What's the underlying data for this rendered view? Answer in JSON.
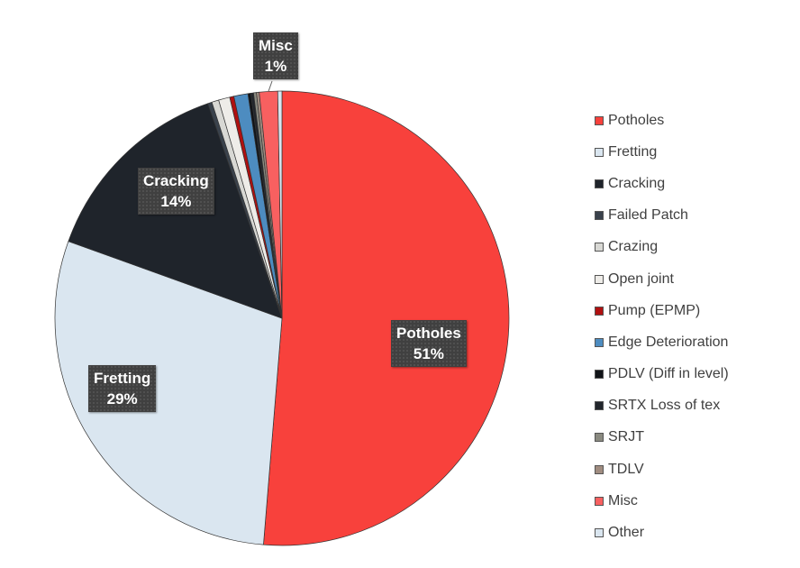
{
  "chart_data": {
    "type": "pie",
    "title": "",
    "start_angle_deg": 0,
    "direction": "clockwise",
    "legend_position": "right",
    "slices": [
      {
        "label": "Potholes",
        "value": 51.3,
        "color": "#F8413C",
        "data_label": "Potholes\n51%"
      },
      {
        "label": "Fretting",
        "value": 29.2,
        "color": "#DAE6F0",
        "data_label": "Fretting\n29%"
      },
      {
        "label": "Cracking",
        "value": 14.2,
        "color": "#1F242B",
        "data_label": "Cracking\n14%"
      },
      {
        "label": "Failed Patch",
        "value": 0.3,
        "color": "#3A424C"
      },
      {
        "label": "Crazing",
        "value": 0.5,
        "color": "#D8D8D4"
      },
      {
        "label": "Open joint",
        "value": 0.8,
        "color": "#EEECE8"
      },
      {
        "label": "Pump (EPMP)",
        "value": 0.3,
        "color": "#B01010"
      },
      {
        "label": "Edge Deterioration",
        "value": 1.0,
        "color": "#4D8CC0"
      },
      {
        "label": "PDLV (Diff in level)",
        "value": 0.2,
        "color": "#111418"
      },
      {
        "label": "SRTX Loss of tex",
        "value": 0.2,
        "color": "#22262C"
      },
      {
        "label": "SRJT",
        "value": 0.2,
        "color": "#8A8A80"
      },
      {
        "label": "TDLV",
        "value": 0.2,
        "color": "#A08C80"
      },
      {
        "label": "Misc",
        "value": 1.3,
        "color": "#F86060",
        "data_label": "Misc\n1%"
      },
      {
        "label": "Other",
        "value": 0.3,
        "color": "#DAE6F0"
      }
    ]
  }
}
